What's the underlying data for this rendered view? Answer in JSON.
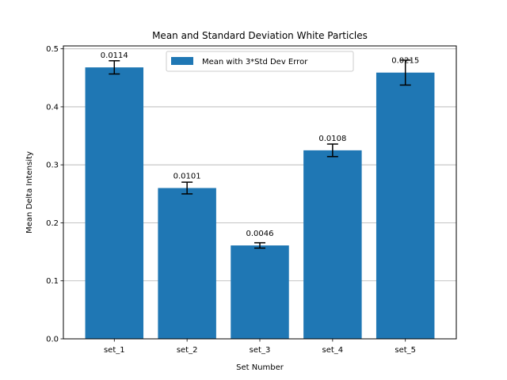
{
  "chart_data": {
    "type": "bar",
    "title": "Mean and Standard Deviation White Particles",
    "xlabel": "Set Number",
    "ylabel": "Mean Delta Intensity",
    "categories": [
      "set_1",
      "set_2",
      "set_3",
      "set_4",
      "set_5"
    ],
    "series": [
      {
        "name": "Mean with 3*Std Dev Error",
        "values": [
          0.468,
          0.26,
          0.161,
          0.325,
          0.459
        ],
        "errors": [
          0.0114,
          0.0101,
          0.0046,
          0.0108,
          0.0215
        ],
        "labels": [
          "0.0114",
          "0.0101",
          "0.0046",
          "0.0108",
          "0.0215"
        ]
      }
    ],
    "ylim": [
      0,
      0.505
    ],
    "yticks": [
      0.0,
      0.1,
      0.2,
      0.3,
      0.4,
      0.5
    ],
    "ytick_labels": [
      "0.0",
      "0.1",
      "0.2",
      "0.3",
      "0.4",
      "0.5"
    ],
    "grid": "y",
    "legend": "upper center",
    "bar_color": "#1f77b4",
    "grid_color": "#b0b0b0"
  }
}
